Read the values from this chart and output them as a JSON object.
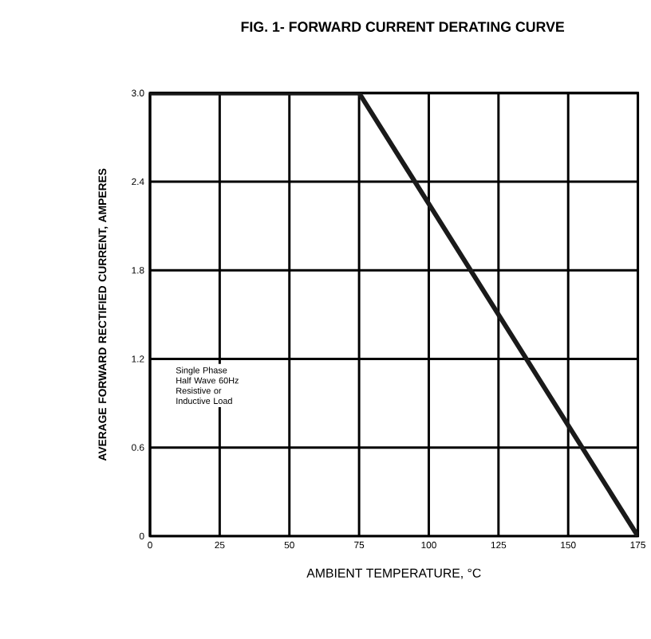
{
  "chart_data": {
    "type": "line",
    "title": "FIG. 1- FORWARD CURRENT DERATING CURVE",
    "xlabel": "AMBIENT TEMPERATURE, °C",
    "ylabel": "AVERAGE FORWARD RECTIFIED CURRENT, AMPERES",
    "annotations": [
      "Single Phase Half Wave 60Hz Resistive or Inductive Load"
    ],
    "x": [
      0,
      75,
      175
    ],
    "series": [
      {
        "color": "#1a1a1a",
        "values": [
          3.0,
          3.0,
          0
        ]
      }
    ],
    "xlim": [
      0,
      175
    ],
    "xticks": [
      0,
      25,
      50,
      75,
      100,
      125,
      150,
      175
    ],
    "ylim": [
      0,
      3.0
    ],
    "yticks": [
      0,
      0.6,
      1.2,
      1.8,
      2.4,
      {
        "value": 3.0,
        "label": "3.0"
      }
    ],
    "grid": true,
    "marker": "none",
    "line_style": "solid"
  }
}
